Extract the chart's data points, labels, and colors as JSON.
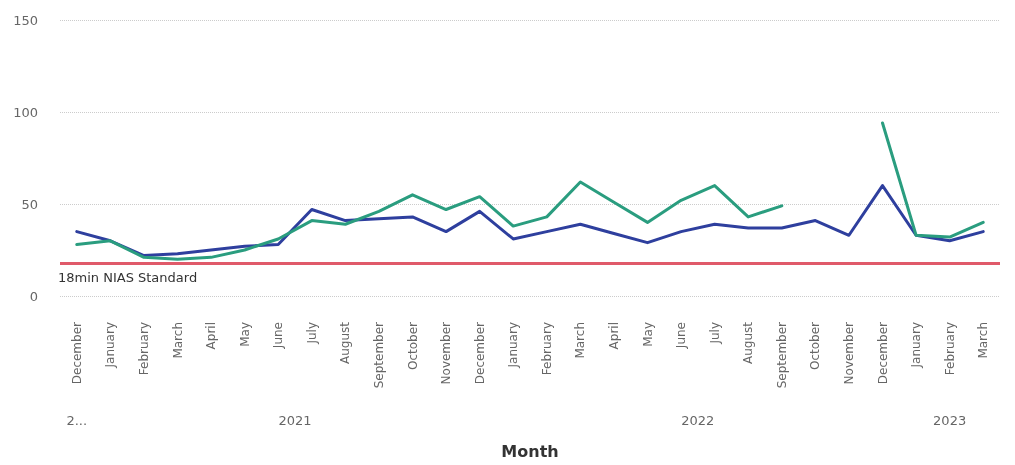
{
  "chart_data": {
    "type": "line",
    "xlabel": "Month",
    "categories": [
      "December",
      "January",
      "February",
      "March",
      "April",
      "May",
      "June",
      "July",
      "August",
      "September",
      "October",
      "November",
      "December",
      "January",
      "February",
      "March",
      "April",
      "May",
      "June",
      "July",
      "August",
      "September",
      "October",
      "November",
      "December",
      "January",
      "February",
      "March"
    ],
    "series": [
      {
        "color": "#2e3f9e",
        "values": [
          35,
          30,
          22,
          23,
          25,
          27,
          28,
          47,
          41,
          42,
          43,
          35,
          46,
          31,
          35,
          39,
          34,
          29,
          35,
          39,
          37,
          37,
          41,
          33,
          60,
          33,
          30,
          35
        ]
      },
      {
        "color": "#2a9d7f",
        "values": [
          28,
          30,
          21,
          20,
          21,
          25,
          31,
          41,
          39,
          46,
          55,
          47,
          54,
          38,
          43,
          62,
          51,
          40,
          52,
          60,
          43,
          49,
          null,
          null,
          94,
          33,
          32,
          40
        ]
      }
    ],
    "ylim": [
      0,
      150
    ],
    "yticks": [
      0,
      50,
      100,
      150
    ],
    "grid": "y",
    "marker": "none",
    "line_style": "solid",
    "ref_lines": [
      {
        "axis": "y",
        "value": 18,
        "label": "18min NIAS Standard",
        "color": "#e05a6a"
      }
    ],
    "annotations": [
      "2...",
      "2021",
      "2022",
      "2023"
    ]
  }
}
